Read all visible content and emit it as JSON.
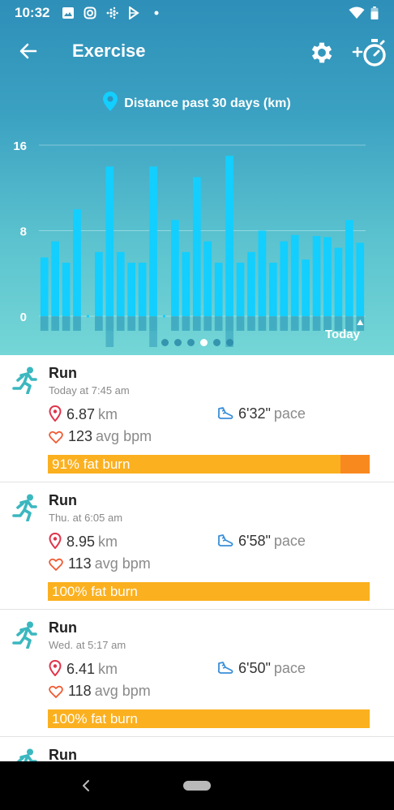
{
  "status_bar": {
    "time": "10:32"
  },
  "header": {
    "title": "Exercise"
  },
  "chart_data": {
    "type": "bar",
    "title": "Distance past 30 days (km)",
    "ylim": [
      0,
      16
    ],
    "yticks": [
      "16",
      "8",
      "0"
    ],
    "x_end_label": "Today",
    "values": [
      5.5,
      7,
      5,
      10,
      0,
      6,
      14,
      6,
      5,
      5,
      14,
      0,
      9,
      6,
      13,
      7,
      5,
      15,
      5,
      6,
      8,
      5,
      7,
      7.6,
      5.3,
      7.5,
      7.4,
      6.4,
      9,
      6.87
    ],
    "grid": true,
    "page_dots": 6,
    "active_page": 3
  },
  "exercises": [
    {
      "name": "Run",
      "when": "Today at 7:45 am",
      "distance": "6.87",
      "distance_unit": "km",
      "pace": "6'32\"",
      "pace_unit": "pace",
      "bpm": "123",
      "bpm_unit": "avg bpm",
      "fat_burn_label": "91% fat burn",
      "fat_burn_pct": 91
    },
    {
      "name": "Run",
      "when": "Thu. at 6:05 am",
      "distance": "8.95",
      "distance_unit": "km",
      "pace": "6'58\"",
      "pace_unit": "pace",
      "bpm": "113",
      "bpm_unit": "avg bpm",
      "fat_burn_label": "100% fat burn",
      "fat_burn_pct": 100
    },
    {
      "name": "Run",
      "when": "Wed. at 5:17 am",
      "distance": "6.41",
      "distance_unit": "km",
      "pace": "6'50\"",
      "pace_unit": "pace",
      "bpm": "118",
      "bpm_unit": "avg bpm",
      "fat_burn_label": "100% fat burn",
      "fat_burn_pct": 100
    },
    {
      "name": "Run"
    }
  ],
  "colors": {
    "bar": "#12cfff",
    "burn": "#fbb01f",
    "burn_peak": "#f8891f",
    "run_icon": "#3bb7bf",
    "pin": "#e0334a",
    "heart": "#f05a32",
    "shoe": "#3a8fd8"
  }
}
